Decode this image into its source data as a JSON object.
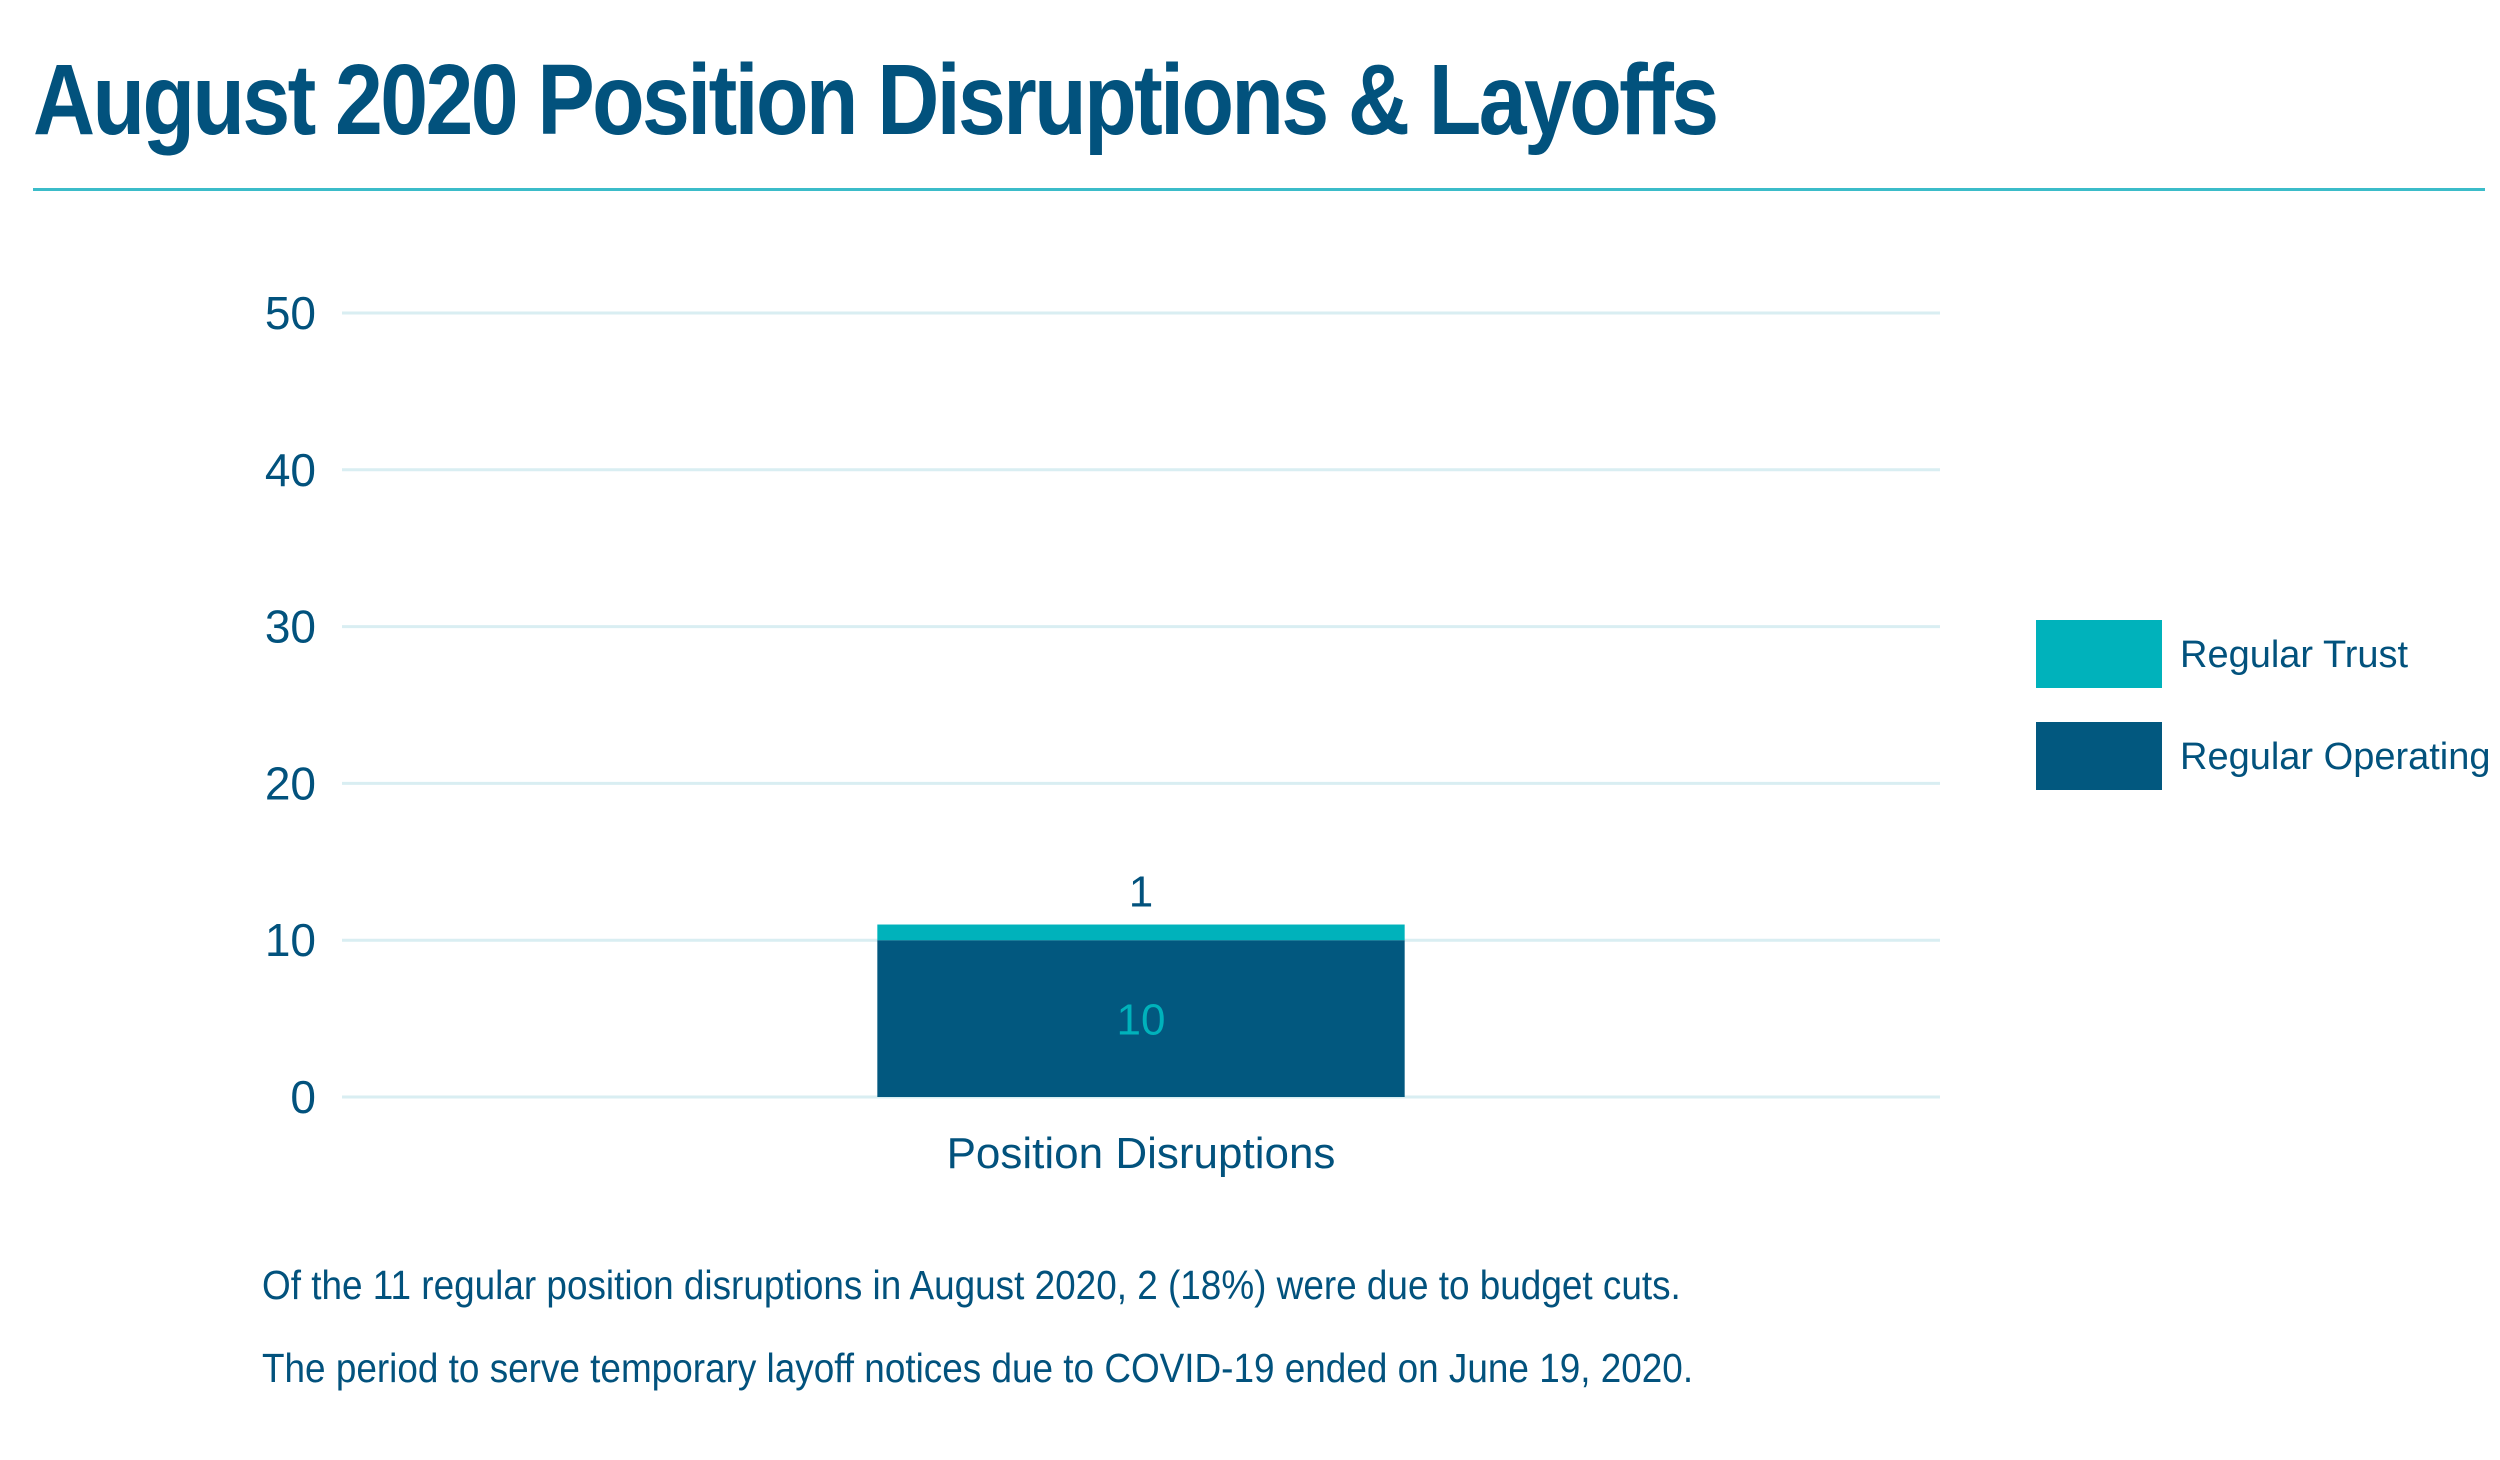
{
  "title": "August 2020 Position Disruptions & Layoffs",
  "colors": {
    "primary": "#02527d",
    "accent": "#00b2bb",
    "rule": "#3bbcc9",
    "grid": "#d9eef2"
  },
  "chart_data": {
    "type": "bar",
    "stacked": true,
    "categories": [
      "Position Disruptions"
    ],
    "series": [
      {
        "name": "Regular Operating",
        "values": [
          10
        ],
        "color": "#02587f",
        "label_color": "#00b2bb"
      },
      {
        "name": "Regular Trust",
        "values": [
          1
        ],
        "color": "#00b2bb",
        "label_color": "#02527d"
      }
    ],
    "ylim": [
      0,
      50
    ],
    "yticks": [
      0,
      10,
      20,
      30,
      40,
      50
    ],
    "grid": true,
    "legend": {
      "position": "right",
      "order": [
        "Regular Trust",
        "Regular Operating"
      ]
    }
  },
  "captions": [
    "Of the 11 regular position disruptions in August 2020, 2 (18%) were due to budget cuts.",
    "The period to serve temporary layoff notices due to COVID-19 ended on June 19, 2020."
  ]
}
